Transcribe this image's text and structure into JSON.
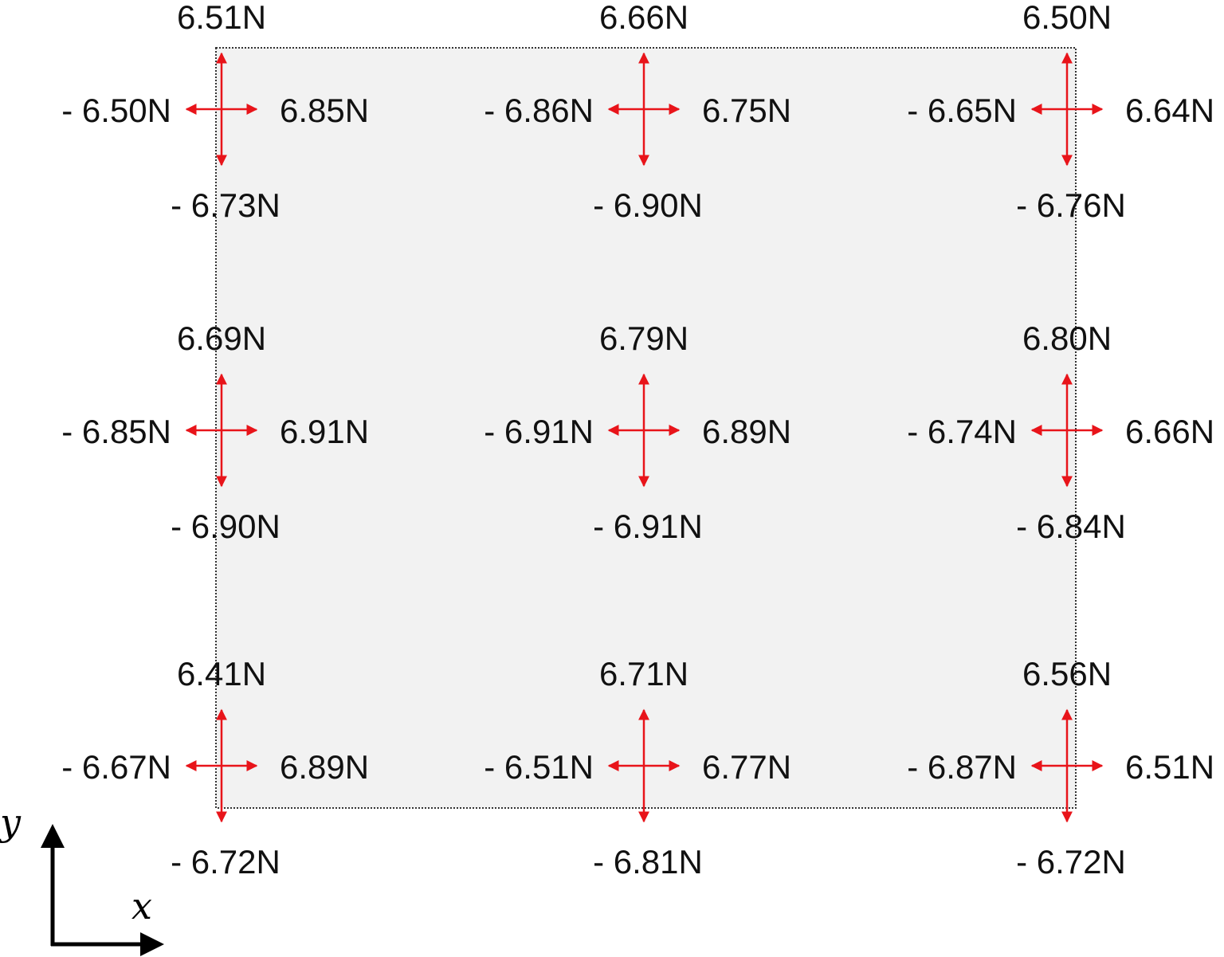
{
  "diagram": {
    "plate": {
      "fill": "#f2f2f2",
      "border": "#333333"
    },
    "arrow_color": "#e8141a",
    "unit": "N",
    "nodes": [
      {
        "row": 0,
        "col": 0,
        "up": "6.51N",
        "left": "- 6.50N",
        "right": "6.85N",
        "down": "- 6.73N"
      },
      {
        "row": 0,
        "col": 1,
        "up": "6.66N",
        "left": "- 6.86N",
        "right": "6.75N",
        "down": "- 6.90N"
      },
      {
        "row": 0,
        "col": 2,
        "up": "6.50N",
        "left": "- 6.65N",
        "right": "6.64N",
        "down": "- 6.76N"
      },
      {
        "row": 1,
        "col": 0,
        "up": "6.69N",
        "left": "- 6.85N",
        "right": "6.91N",
        "down": "- 6.90N"
      },
      {
        "row": 1,
        "col": 1,
        "up": "6.79N",
        "left": "- 6.91N",
        "right": "6.89N",
        "down": "- 6.91N"
      },
      {
        "row": 1,
        "col": 2,
        "up": "6.80N",
        "left": "- 6.74N",
        "right": "6.66N",
        "down": "- 6.84N"
      },
      {
        "row": 2,
        "col": 0,
        "up": "6.41N",
        "left": "- 6.67N",
        "right": "6.89N",
        "down": "- 6.72N"
      },
      {
        "row": 2,
        "col": 1,
        "up": "6.71N",
        "left": "- 6.51N",
        "right": "6.77N",
        "down": "- 6.81N"
      },
      {
        "row": 2,
        "col": 2,
        "up": "6.56N",
        "left": "- 6.87N",
        "right": "6.51N",
        "down": "- 6.72N"
      }
    ],
    "axes": {
      "x_label": "x",
      "y_label": "y"
    }
  }
}
